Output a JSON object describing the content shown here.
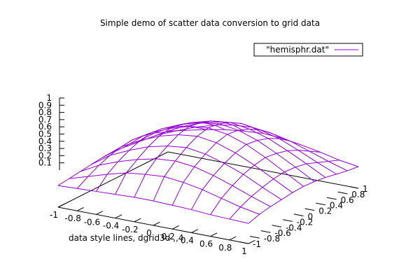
{
  "chart_data": {
    "type": "surface",
    "title": "Simple demo of scatter data conversion to grid data",
    "legend": {
      "label": "\"hemisphr.dat\"",
      "color": "#9400d3",
      "placement": "top-right"
    },
    "xlabel": "data style lines, dgrid3d ,,4",
    "x_ticks": [
      "-1",
      "-0.8",
      "-0.6",
      "-0.4",
      "-0.2",
      "0",
      "0.2",
      "0.4",
      "0.6",
      "0.8",
      "1"
    ],
    "y_ticks": [
      "-1",
      "-0.8",
      "-0.6",
      "-0.4",
      "-0.2",
      "0",
      "0.2",
      "0.4",
      "0.6",
      "0.8",
      "1"
    ],
    "z_ticks": [
      "0.1",
      "0.2",
      "0.3",
      "0.4",
      "0.5",
      "0.6",
      "0.7",
      "0.8",
      "0.9",
      "1"
    ],
    "xlim": [
      -1,
      1
    ],
    "ylim": [
      -1,
      1
    ],
    "zlim": [
      0,
      1
    ],
    "grid": false,
    "x": [
      -1,
      -0.8,
      -0.6,
      -0.4,
      -0.2,
      0,
      0.2,
      0.4,
      0.6,
      0.8,
      1
    ],
    "y": [
      -1,
      -0.8,
      -0.6,
      -0.4,
      -0.2,
      0,
      0.2,
      0.4,
      0.6,
      0.8,
      1
    ],
    "z": [
      [
        0.3,
        0.31,
        0.32,
        0.33,
        0.34,
        0.34,
        0.33,
        0.32,
        0.3,
        0.29,
        0.28
      ],
      [
        0.32,
        0.4,
        0.48,
        0.55,
        0.58,
        0.6,
        0.57,
        0.52,
        0.45,
        0.38,
        0.33
      ],
      [
        0.34,
        0.48,
        0.58,
        0.66,
        0.72,
        0.74,
        0.71,
        0.64,
        0.55,
        0.45,
        0.36
      ],
      [
        0.36,
        0.54,
        0.66,
        0.76,
        0.82,
        0.85,
        0.81,
        0.73,
        0.63,
        0.5,
        0.38
      ],
      [
        0.38,
        0.58,
        0.72,
        0.83,
        0.9,
        0.93,
        0.89,
        0.8,
        0.68,
        0.54,
        0.4
      ],
      [
        0.38,
        0.6,
        0.75,
        0.86,
        0.94,
        0.97,
        0.93,
        0.84,
        0.71,
        0.56,
        0.41
      ],
      [
        0.37,
        0.58,
        0.73,
        0.84,
        0.91,
        0.95,
        0.91,
        0.82,
        0.69,
        0.55,
        0.4
      ],
      [
        0.35,
        0.54,
        0.68,
        0.79,
        0.86,
        0.89,
        0.85,
        0.77,
        0.65,
        0.52,
        0.38
      ],
      [
        0.33,
        0.48,
        0.61,
        0.71,
        0.77,
        0.8,
        0.76,
        0.69,
        0.58,
        0.46,
        0.35
      ],
      [
        0.31,
        0.42,
        0.52,
        0.6,
        0.65,
        0.67,
        0.64,
        0.58,
        0.49,
        0.4,
        0.32
      ],
      [
        0.29,
        0.35,
        0.41,
        0.46,
        0.49,
        0.51,
        0.49,
        0.45,
        0.4,
        0.34,
        0.3
      ]
    ]
  }
}
